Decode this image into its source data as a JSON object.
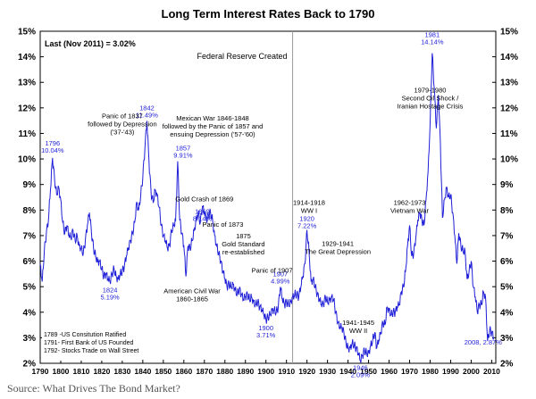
{
  "chart_data": {
    "type": "line",
    "title": "Long Term Interest Rates Back to 1790",
    "ylim": [
      2,
      15
    ],
    "xlim": [
      1790,
      2012
    ],
    "y_ticks": [
      "2%",
      "3%",
      "4%",
      "5%",
      "6%",
      "7%",
      "8%",
      "9%",
      "10%",
      "11%",
      "12%",
      "13%",
      "14%",
      "15%"
    ],
    "x_ticks": [
      "1790",
      "1800",
      "1810",
      "1820",
      "1830",
      "1840",
      "1850",
      "1860",
      "1870",
      "1880",
      "1890",
      "1900",
      "1910",
      "1920",
      "1930",
      "1940",
      "1950",
      "1960",
      "1970",
      "1980",
      "1990",
      "2000",
      "2010"
    ],
    "grid": false,
    "series": [
      {
        "color": "#1f1fd8",
        "points": [
          [
            1790,
            5.9
          ],
          [
            1791,
            5.2
          ],
          [
            1792,
            6.4
          ],
          [
            1793,
            7.1
          ],
          [
            1794,
            7.6
          ],
          [
            1795,
            8.8
          ],
          [
            1796,
            10.04
          ],
          [
            1797,
            9.2
          ],
          [
            1798,
            8.6
          ],
          [
            1799,
            8.9
          ],
          [
            1800,
            8.4
          ],
          [
            1801,
            7.5
          ],
          [
            1802,
            7.1
          ],
          [
            1803,
            7.4
          ],
          [
            1804,
            7.0
          ],
          [
            1805,
            6.9
          ],
          [
            1806,
            7.2
          ],
          [
            1807,
            6.8
          ],
          [
            1808,
            7.0
          ],
          [
            1809,
            6.6
          ],
          [
            1810,
            6.5
          ],
          [
            1811,
            6.3
          ],
          [
            1812,
            6.8
          ],
          [
            1813,
            7.4
          ],
          [
            1814,
            7.9
          ],
          [
            1815,
            7.1
          ],
          [
            1816,
            6.5
          ],
          [
            1817,
            6.2
          ],
          [
            1818,
            6.0
          ],
          [
            1819,
            6.0
          ],
          [
            1820,
            5.7
          ],
          [
            1821,
            5.4
          ],
          [
            1822,
            5.5
          ],
          [
            1823,
            5.3
          ],
          [
            1824,
            5.19
          ],
          [
            1825,
            5.5
          ],
          [
            1826,
            5.7
          ],
          [
            1827,
            5.4
          ],
          [
            1828,
            5.3
          ],
          [
            1829,
            5.5
          ],
          [
            1830,
            5.6
          ],
          [
            1831,
            5.8
          ],
          [
            1832,
            6.2
          ],
          [
            1833,
            6.5
          ],
          [
            1834,
            6.8
          ],
          [
            1835,
            7.1
          ],
          [
            1836,
            7.5
          ],
          [
            1837,
            8.3
          ],
          [
            1838,
            8.0
          ],
          [
            1839,
            8.6
          ],
          [
            1840,
            9.3
          ],
          [
            1841,
            10.4
          ],
          [
            1842,
            11.49
          ],
          [
            1843,
            9.9
          ],
          [
            1844,
            8.7
          ],
          [
            1845,
            8.3
          ],
          [
            1846,
            8.8
          ],
          [
            1847,
            8.6
          ],
          [
            1848,
            8.1
          ],
          [
            1849,
            7.4
          ],
          [
            1850,
            7.0
          ],
          [
            1851,
            6.8
          ],
          [
            1852,
            6.5
          ],
          [
            1853,
            6.6
          ],
          [
            1854,
            7.2
          ],
          [
            1855,
            7.4
          ],
          [
            1856,
            7.6
          ],
          [
            1857,
            9.91
          ],
          [
            1858,
            7.6
          ],
          [
            1859,
            7.1
          ],
          [
            1860,
            6.6
          ],
          [
            1861,
            5.4
          ],
          [
            1862,
            6.6
          ],
          [
            1863,
            6.5
          ],
          [
            1864,
            6.8
          ],
          [
            1865,
            7.2
          ],
          [
            1866,
            7.6
          ],
          [
            1867,
            7.9
          ],
          [
            1868,
            7.5
          ],
          [
            1869,
            8.14
          ],
          [
            1870,
            7.9
          ],
          [
            1871,
            7.6
          ],
          [
            1872,
            7.8
          ],
          [
            1873,
            7.9
          ],
          [
            1874,
            7.6
          ],
          [
            1875,
            7.0
          ],
          [
            1876,
            6.6
          ],
          [
            1877,
            6.3
          ],
          [
            1878,
            6.0
          ],
          [
            1879,
            5.6
          ],
          [
            1880,
            5.3
          ],
          [
            1881,
            5.0
          ],
          [
            1882,
            5.1
          ],
          [
            1883,
            5.0
          ],
          [
            1884,
            5.1
          ],
          [
            1885,
            4.9
          ],
          [
            1886,
            4.7
          ],
          [
            1887,
            4.9
          ],
          [
            1888,
            4.7
          ],
          [
            1889,
            4.5
          ],
          [
            1890,
            4.6
          ],
          [
            1891,
            4.7
          ],
          [
            1892,
            4.5
          ],
          [
            1893,
            4.6
          ],
          [
            1894,
            4.4
          ],
          [
            1895,
            4.3
          ],
          [
            1896,
            4.4
          ],
          [
            1897,
            4.2
          ],
          [
            1898,
            4.1
          ],
          [
            1899,
            3.9
          ],
          [
            1900,
            3.71
          ],
          [
            1901,
            3.8
          ],
          [
            1902,
            3.9
          ],
          [
            1903,
            4.1
          ],
          [
            1904,
            4.1
          ],
          [
            1905,
            4.0
          ],
          [
            1906,
            4.2
          ],
          [
            1907,
            4.99
          ],
          [
            1908,
            4.5
          ],
          [
            1909,
            4.3
          ],
          [
            1910,
            4.4
          ],
          [
            1911,
            4.3
          ],
          [
            1912,
            4.4
          ],
          [
            1913,
            4.6
          ],
          [
            1914,
            4.7
          ],
          [
            1915,
            4.7
          ],
          [
            1916,
            4.6
          ],
          [
            1917,
            5.0
          ],
          [
            1918,
            5.4
          ],
          [
            1919,
            5.9
          ],
          [
            1920,
            7.22
          ],
          [
            1921,
            6.4
          ],
          [
            1922,
            5.2
          ],
          [
            1923,
            5.3
          ],
          [
            1924,
            5.0
          ],
          [
            1925,
            4.7
          ],
          [
            1926,
            4.5
          ],
          [
            1927,
            4.3
          ],
          [
            1928,
            4.3
          ],
          [
            1929,
            4.6
          ],
          [
            1930,
            4.4
          ],
          [
            1931,
            4.5
          ],
          [
            1932,
            4.6
          ],
          [
            1933,
            4.5
          ],
          [
            1934,
            4.0
          ],
          [
            1935,
            3.6
          ],
          [
            1936,
            3.4
          ],
          [
            1937,
            3.4
          ],
          [
            1938,
            3.2
          ],
          [
            1939,
            2.8
          ],
          [
            1940,
            2.6
          ],
          [
            1941,
            2.6
          ],
          [
            1942,
            2.8
          ],
          [
            1943,
            2.7
          ],
          [
            1944,
            2.6
          ],
          [
            1945,
            2.4
          ],
          [
            1946,
            2.09
          ],
          [
            1947,
            2.3
          ],
          [
            1948,
            2.5
          ],
          [
            1949,
            2.4
          ],
          [
            1950,
            2.4
          ],
          [
            1951,
            2.7
          ],
          [
            1952,
            2.9
          ],
          [
            1953,
            3.2
          ],
          [
            1954,
            2.6
          ],
          [
            1955,
            2.9
          ],
          [
            1956,
            3.2
          ],
          [
            1957,
            3.6
          ],
          [
            1958,
            3.5
          ],
          [
            1959,
            4.2
          ],
          [
            1960,
            4.1
          ],
          [
            1961,
            3.9
          ],
          [
            1962,
            4.0
          ],
          [
            1963,
            4.0
          ],
          [
            1964,
            4.2
          ],
          [
            1965,
            4.3
          ],
          [
            1966,
            4.8
          ],
          [
            1967,
            5.0
          ],
          [
            1968,
            5.6
          ],
          [
            1969,
            6.6
          ],
          [
            1970,
            7.4
          ],
          [
            1971,
            6.2
          ],
          [
            1972,
            6.3
          ],
          [
            1973,
            6.9
          ],
          [
            1974,
            7.6
          ],
          [
            1975,
            7.9
          ],
          [
            1976,
            7.6
          ],
          [
            1977,
            7.4
          ],
          [
            1978,
            8.4
          ],
          [
            1979,
            9.5
          ],
          [
            1980,
            11.4
          ],
          [
            1981,
            14.14
          ],
          [
            1982,
            12.8
          ],
          [
            1983,
            11.2
          ],
          [
            1984,
            12.5
          ],
          [
            1985,
            10.6
          ],
          [
            1986,
            7.7
          ],
          [
            1987,
            8.4
          ],
          [
            1988,
            8.9
          ],
          [
            1989,
            8.5
          ],
          [
            1990,
            8.6
          ],
          [
            1991,
            7.9
          ],
          [
            1992,
            7.0
          ],
          [
            1993,
            5.9
          ],
          [
            1994,
            7.1
          ],
          [
            1995,
            6.6
          ],
          [
            1996,
            6.4
          ],
          [
            1997,
            6.4
          ],
          [
            1998,
            5.3
          ],
          [
            1999,
            5.6
          ],
          [
            2000,
            6.0
          ],
          [
            2001,
            5.0
          ],
          [
            2002,
            4.6
          ],
          [
            2003,
            4.0
          ],
          [
            2004,
            4.3
          ],
          [
            2005,
            4.3
          ],
          [
            2006,
            4.8
          ],
          [
            2007,
            4.6
          ],
          [
            2008,
            2.87
          ],
          [
            2009,
            3.3
          ],
          [
            2010,
            3.2
          ],
          [
            2011,
            3.02
          ]
        ]
      }
    ],
    "data_labels": [
      {
        "year": 1796,
        "text": "1796\n10.04%",
        "x": 1796,
        "y": 10.04
      },
      {
        "year": 1824,
        "text": "1824\n5.19%",
        "x": 1824,
        "y": 5.19
      },
      {
        "year": 1842,
        "text": "1842\n11.49%",
        "x": 1842,
        "y": 11.49
      },
      {
        "year": 1857,
        "text": "1857\n9.91%",
        "x": 1857,
        "y": 9.91
      },
      {
        "year": 1869,
        "text": "1869\n8.14%",
        "x": 1869,
        "y": 8.14
      },
      {
        "year": 1900,
        "text": "1900\n3.71%",
        "x": 1900,
        "y": 3.71
      },
      {
        "year": 1907,
        "text": "1907\n4.99%",
        "x": 1907,
        "y": 4.99
      },
      {
        "year": 1920,
        "text": "1920\n7.22%",
        "x": 1920,
        "y": 7.22
      },
      {
        "year": 1946,
        "text": "1946\n2.09%",
        "x": 1946,
        "y": 2.09
      },
      {
        "year": 1981,
        "text": "1981\n14.14%",
        "x": 1981,
        "y": 14.14
      },
      {
        "year": 2008,
        "text": "2008, 2.87%",
        "x": 2008,
        "y": 2.87
      }
    ],
    "annotations": [
      "Panic of 1837\nfollowed by Depression\n('37-'43)",
      "Mexican War 1846-1848\nfollowed by the Panic of 1857 and\nensuing Depression ('57-'60)",
      "Gold Crash of 1869",
      "Panic of 1873",
      "1875\nGold Standard\nre-established",
      "Panic of 1907",
      "American Civil War\n1860-1865",
      "1914-1918\nWW I",
      "1929-1941\nThe Great Depression",
      "1941-1945\nWW II",
      "1962-1973\nVietnam War",
      "1979-1980\nSecond Oil Shock /\nIranian Hostage Crisis"
    ],
    "last_value": "Last (Nov 2011) = 3.02%",
    "fed_label": "Federal Reserve Created",
    "fed_year": 1913,
    "notes": [
      "1789 -US Consitution Ratified",
      "1791- First Bank of US Founded",
      "1792- Stocks Trade on Wall Street"
    ]
  },
  "source": "Source: What Drives The Bond Market?"
}
